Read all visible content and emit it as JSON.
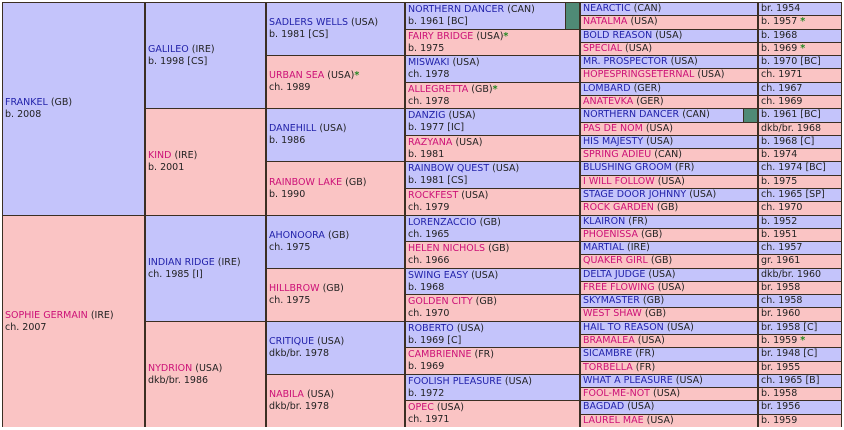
{
  "g1": [
    {
      "name": "FRANKEL",
      "c": "(GB)",
      "d": "b. 2008",
      "s": "m"
    },
    {
      "name": "SOPHIE GERMAIN",
      "c": "(IRE)",
      "d": "ch. 2007",
      "s": "f"
    }
  ],
  "g2": [
    {
      "name": "GALILEO",
      "c": "(IRE)",
      "d": "b. 1998 [CS]",
      "s": "m"
    },
    {
      "name": "KIND",
      "c": "(IRE)",
      "d": "b. 2001",
      "s": "f"
    },
    {
      "name": "INDIAN RIDGE",
      "c": "(IRE)",
      "d": "ch. 1985 [I]",
      "s": "m"
    },
    {
      "name": "NYDRION",
      "c": "(USA)",
      "d": "dkb/br. 1986",
      "s": "f"
    }
  ],
  "g3": [
    {
      "name": "SADLERS WELLS",
      "c": "(USA)",
      "d": "b. 1981 [CS]",
      "s": "m"
    },
    {
      "name": "URBAN SEA",
      "c": "(USA)",
      "star": "*",
      "d": "ch. 1989",
      "s": "f"
    },
    {
      "name": "DANEHILL",
      "c": "(USA)",
      "d": "b. 1986",
      "s": "m"
    },
    {
      "name": "RAINBOW LAKE",
      "c": "(GB)",
      "d": "b. 1990",
      "s": "f"
    },
    {
      "name": "AHONOORA",
      "c": "(GB)",
      "d": "ch. 1975",
      "s": "m"
    },
    {
      "name": "HILLBROW",
      "c": "(GB)",
      "d": "ch. 1975",
      "s": "f"
    },
    {
      "name": "CRITIQUE",
      "c": "(USA)",
      "d": "dkb/br. 1978",
      "s": "m"
    },
    {
      "name": "NABILA",
      "c": "(USA)",
      "d": "dkb/br. 1978",
      "s": "f"
    }
  ],
  "g4": [
    {
      "name": "NORTHERN DANCER",
      "c": "(CAN)",
      "d": "b. 1961 [BC]",
      "s": "m",
      "flag": true
    },
    {
      "name": "FAIRY BRIDGE",
      "c": "(USA)",
      "star": "*",
      "d": "b. 1975",
      "s": "f"
    },
    {
      "name": "MISWAKI",
      "c": "(USA)",
      "d": "ch. 1978",
      "s": "m"
    },
    {
      "name": "ALLEGRETTA",
      "c": "(GB)",
      "star": "*",
      "d": "ch. 1978",
      "s": "f"
    },
    {
      "name": "DANZIG",
      "c": "(USA)",
      "d": "b. 1977 [IC]",
      "s": "m"
    },
    {
      "name": "RAZYANA",
      "c": "(USA)",
      "d": "b. 1981",
      "s": "f"
    },
    {
      "name": "RAINBOW QUEST",
      "c": "(USA)",
      "d": "b. 1981 [CS]",
      "s": "m"
    },
    {
      "name": "ROCKFEST",
      "c": "(USA)",
      "d": "ch. 1979",
      "s": "f"
    },
    {
      "name": "LORENZACCIO",
      "c": "(GB)",
      "d": "ch. 1965",
      "s": "m"
    },
    {
      "name": "HELEN NICHOLS",
      "c": "(GB)",
      "d": "ch. 1966",
      "s": "f"
    },
    {
      "name": "SWING EASY",
      "c": "(USA)",
      "d": "b. 1968",
      "s": "m"
    },
    {
      "name": "GOLDEN CITY",
      "c": "(GB)",
      "d": "ch. 1970",
      "s": "f"
    },
    {
      "name": "ROBERTO",
      "c": "(USA)",
      "d": "b. 1969 [C]",
      "s": "m"
    },
    {
      "name": "CAMBRIENNE",
      "c": "(FR)",
      "d": "b. 1969",
      "s": "f"
    },
    {
      "name": "FOOLISH PLEASURE",
      "c": "(USA)",
      "d": "b. 1972",
      "s": "m"
    },
    {
      "name": "OPEC",
      "c": "(USA)",
      "d": "ch. 1971",
      "s": "f"
    }
  ],
  "g5": [
    {
      "name": "NEARCTIC",
      "c": "(CAN)",
      "d": "br. 1954",
      "s": "m"
    },
    {
      "name": "NATALMA",
      "c": "(USA)",
      "d": "b. 1957",
      "star": "*",
      "s": "f"
    },
    {
      "name": "BOLD REASON",
      "c": "(USA)",
      "d": "b. 1968",
      "s": "m"
    },
    {
      "name": "SPECIAL",
      "c": "(USA)",
      "d": "b. 1969",
      "star": "*",
      "s": "f"
    },
    {
      "name": "MR. PROSPECTOR",
      "c": "(USA)",
      "d": "b. 1970 [BC]",
      "s": "m"
    },
    {
      "name": "HOPESPRINGSETERNAL",
      "c": "(USA)",
      "d": "ch. 1971",
      "s": "f"
    },
    {
      "name": "LOMBARD",
      "c": "(GER)",
      "d": "ch. 1967",
      "s": "m"
    },
    {
      "name": "ANATEVKA",
      "c": "(GER)",
      "d": "ch. 1969",
      "s": "f"
    },
    {
      "name": "NORTHERN DANCER",
      "c": "(CAN)",
      "d": "b. 1961 [BC]",
      "s": "m",
      "flag": true
    },
    {
      "name": "PAS DE NOM",
      "c": "(USA)",
      "d": "dkb/br. 1968",
      "s": "f"
    },
    {
      "name": "HIS MAJESTY",
      "c": "(USA)",
      "d": "b. 1968 [C]",
      "s": "m"
    },
    {
      "name": "SPRING ADIEU",
      "c": "(CAN)",
      "d": "b. 1974",
      "s": "f"
    },
    {
      "name": "BLUSHING GROOM",
      "c": "(FR)",
      "d": "ch. 1974 [BC]",
      "s": "m"
    },
    {
      "name": "I WILL FOLLOW",
      "c": "(USA)",
      "d": "b. 1975",
      "s": "f"
    },
    {
      "name": "STAGE DOOR JOHNNY",
      "c": "(USA)",
      "d": "ch. 1965 [SP]",
      "s": "m"
    },
    {
      "name": "ROCK GARDEN",
      "c": "(GB)",
      "d": "ch. 1970",
      "s": "f"
    },
    {
      "name": "KLAIRON",
      "c": "(FR)",
      "d": "b. 1952",
      "s": "m"
    },
    {
      "name": "PHOENISSA",
      "c": "(GB)",
      "d": "b. 1951",
      "s": "f"
    },
    {
      "name": "MARTIAL",
      "c": "(IRE)",
      "d": "ch. 1957",
      "s": "m"
    },
    {
      "name": "QUAKER GIRL",
      "c": "(GB)",
      "d": "gr. 1961",
      "s": "f"
    },
    {
      "name": "DELTA JUDGE",
      "c": "(USA)",
      "d": "dkb/br. 1960",
      "s": "m"
    },
    {
      "name": "FREE FLOWING",
      "c": "(USA)",
      "d": "br. 1958",
      "s": "f"
    },
    {
      "name": "SKYMASTER",
      "c": "(GB)",
      "d": "ch. 1958",
      "s": "m"
    },
    {
      "name": "WEST SHAW",
      "c": "(GB)",
      "d": "br. 1960",
      "s": "f"
    },
    {
      "name": "HAIL TO REASON",
      "c": "(USA)",
      "d": "br. 1958 [C]",
      "s": "m"
    },
    {
      "name": "BRAMALEA",
      "c": "(USA)",
      "d": "b. 1959",
      "star": "*",
      "s": "f"
    },
    {
      "name": "SICAMBRE",
      "c": "(FR)",
      "d": "br. 1948 [C]",
      "s": "m"
    },
    {
      "name": "TORBELLA",
      "c": "(FR)",
      "d": "br. 1955",
      "s": "f"
    },
    {
      "name": "WHAT A PLEASURE",
      "c": "(USA)",
      "d": "ch. 1965 [B]",
      "s": "m"
    },
    {
      "name": "FOOL-ME-NOT",
      "c": "(USA)",
      "d": "b. 1958",
      "s": "f"
    },
    {
      "name": "BAGDAD",
      "c": "(USA)",
      "d": "br. 1956",
      "s": "m"
    },
    {
      "name": "LAUREL MAE",
      "c": "(USA)",
      "d": "b. 1959",
      "s": "f"
    }
  ]
}
